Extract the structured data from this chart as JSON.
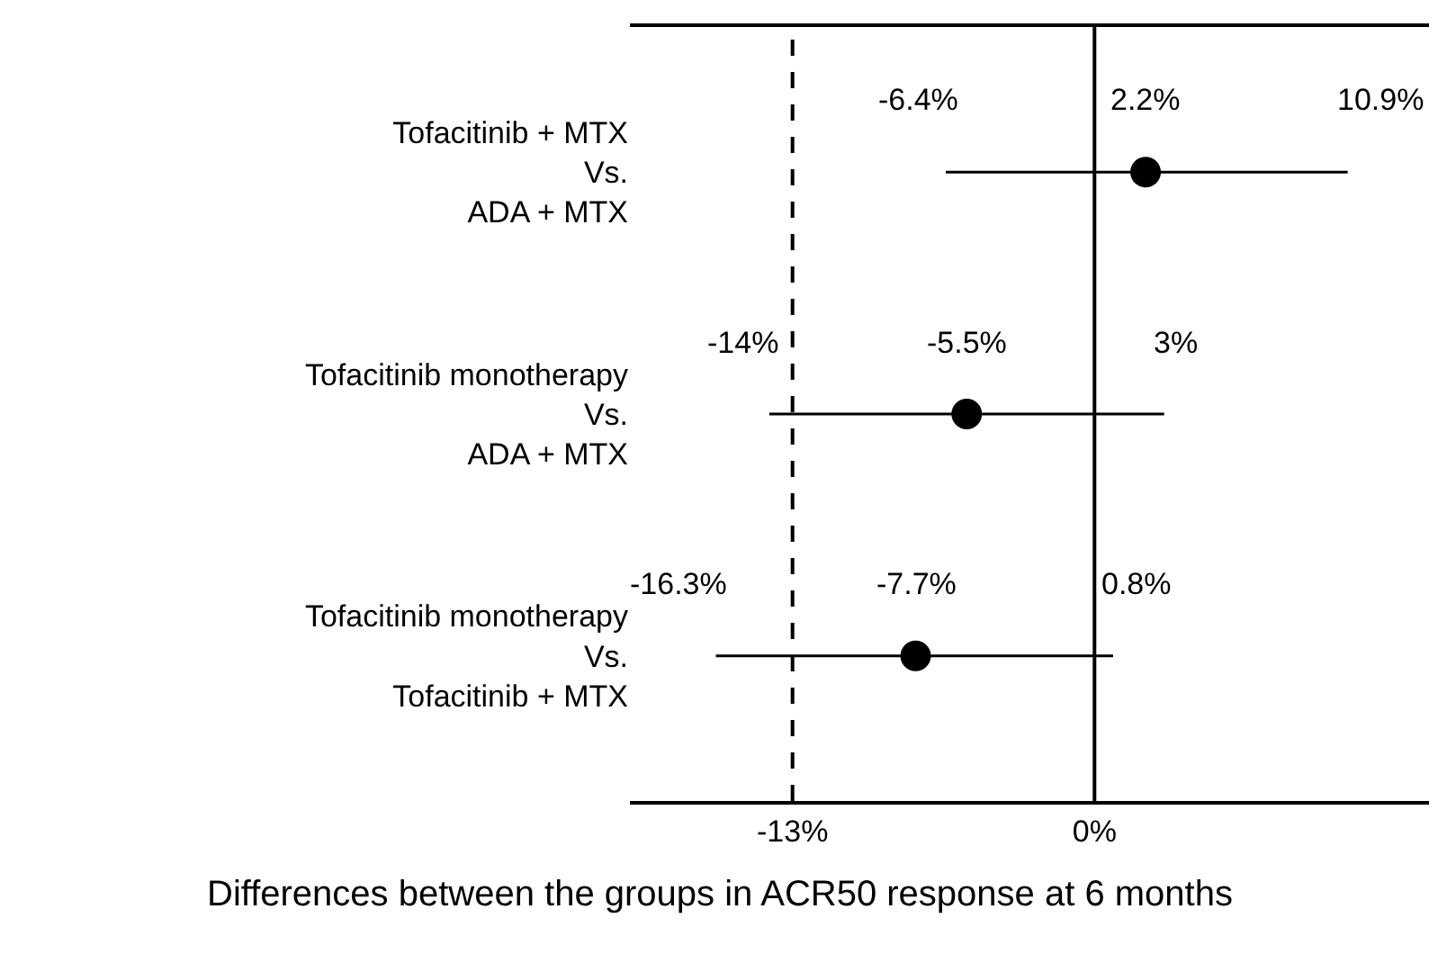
{
  "chart_data": {
    "type": "scatter",
    "orientation": "horizontal",
    "xlabel": "Differences between the groups in ACR50 response at 6 months",
    "categories": [
      "Tofacitinib + MTX\nVs.\nADA + MTX",
      "Tofacitinib monotherapy\nVs.\nADA + MTX",
      "Tofacitinib monotherapy\nVs.\nTofacitinib + MTX"
    ],
    "values": [
      2.2,
      -5.5,
      -7.7
    ],
    "errors": [
      [
        -6.4,
        10.9
      ],
      [
        -14,
        3
      ],
      [
        -16.3,
        0.8
      ]
    ],
    "value_labels": [
      "2.2%",
      "-5.5%",
      "-7.7%"
    ],
    "color": "#000000",
    "marker": "circle",
    "annotations": [
      {
        "text": "-6.4%",
        "x": -6.4,
        "y": "Tofacitinib + MTX\nVs.\nADA + MTX"
      },
      {
        "text": "10.9%",
        "x": 10.9,
        "y": "Tofacitinib + MTX\nVs.\nADA + MTX"
      },
      {
        "text": "-14%",
        "x": -14,
        "y": "Tofacitinib monotherapy\nVs.\nADA + MTX"
      },
      {
        "text": "3%",
        "x": 3,
        "y": "Tofacitinib monotherapy\nVs.\nADA + MTX"
      },
      {
        "text": "-16.3%",
        "x": -16.3,
        "y": "Tofacitinib monotherapy\nVs.\nTofacitinib + MTX"
      },
      {
        "text": "0.8%",
        "x": 0.8,
        "y": "Tofacitinib monotherapy\nVs.\nTofacitinib + MTX"
      }
    ],
    "ref_lines": [
      {
        "axis": "x",
        "value": 0,
        "color": "#000000",
        "line_style": "solid"
      },
      {
        "axis": "x",
        "value": -13,
        "color": "#000000",
        "line_style": "dashed"
      }
    ],
    "xlim": [
      -20,
      14.4
    ],
    "xticks": [
      {
        "value": -13,
        "label": "-13%"
      },
      {
        "value": 0,
        "label": "0%"
      }
    ]
  }
}
